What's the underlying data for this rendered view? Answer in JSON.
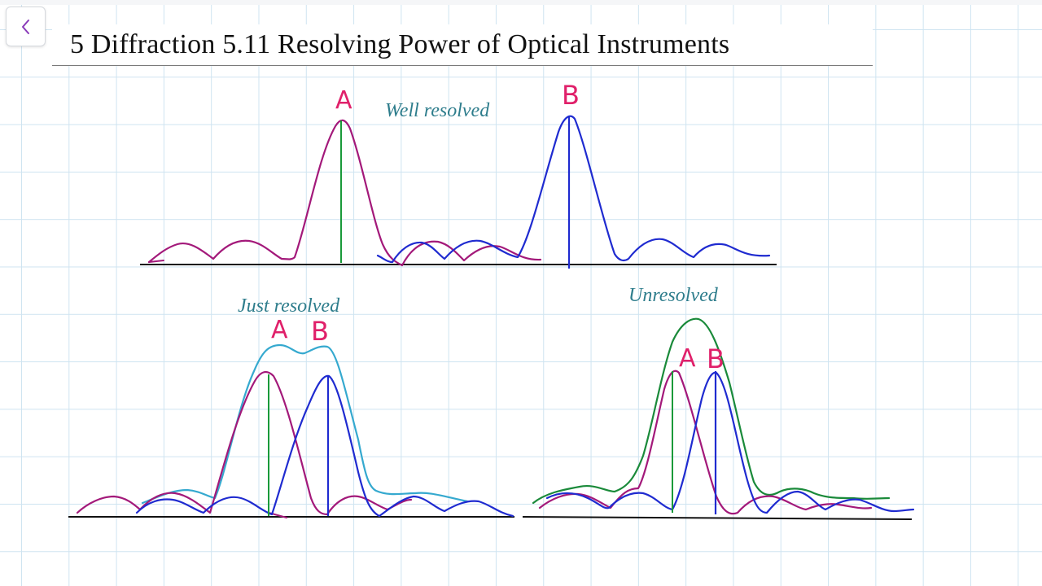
{
  "page": {
    "title": "5 Diffraction 5.11 Resolving Power of Optical Instruments",
    "back_icon": "chevron-left-icon"
  },
  "panels": {
    "well_resolved": {
      "caption": "Well resolved",
      "label_a": "A",
      "label_b": "B"
    },
    "just_resolved": {
      "caption": "Just resolved",
      "label_a": "A",
      "label_b": "B"
    },
    "unresolved": {
      "caption": "Unresolved",
      "label_a": "A",
      "label_b": "B"
    }
  },
  "colors": {
    "source_a": "#a3197a",
    "source_b": "#1f2bd0",
    "sum_just": "#35a9cf",
    "sum_unresolved": "#1a8a3a",
    "center_line_a": "#1a9a3a",
    "label": "#e0206a",
    "caption": "#2e7d8c",
    "axis": "#111111",
    "accent": "#8a3ab9"
  }
}
